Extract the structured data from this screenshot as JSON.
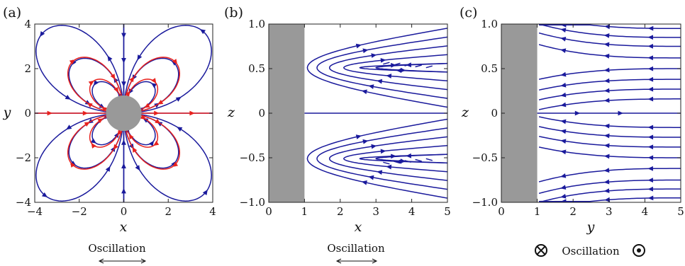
{
  "chart_data": [
    {
      "type": "streamplot",
      "panel_label": "(a)",
      "xlabel": "x",
      "ylabel": "y",
      "xlim": [
        -5,
        5
      ],
      "ylim": [
        -5,
        5
      ],
      "xticks": [
        "−4",
        "−2",
        "0",
        "2",
        "4"
      ],
      "yticks": [
        "4",
        "2",
        "0",
        "−2",
        "−4"
      ],
      "obstacle": {
        "shape": "circle",
        "center": [
          0,
          0
        ],
        "radius": 1,
        "color": "#999999"
      },
      "series": [
        {
          "color": "#1a1a9c",
          "loop_radii": [
            1.15,
            2.0,
            3.2
          ]
        },
        {
          "color": "#e8221e",
          "loop_radii": [
            1.55,
            2.55
          ]
        }
      ],
      "caption": "Oscillation",
      "caption_arrow": "horizontal-double"
    },
    {
      "type": "streamplot",
      "panel_label": "(b)",
      "xlabel": "x",
      "ylabel": "z",
      "xlim": [
        0,
        5
      ],
      "ylim": [
        -1,
        1
      ],
      "xticks": [
        "0",
        "1",
        "2",
        "3",
        "4",
        "5"
      ],
      "yticks": [
        "1.0",
        "0.5",
        "0",
        "−0.5",
        "−1.0"
      ],
      "wall": {
        "x_range": [
          0,
          1
        ],
        "color": "#999999"
      },
      "series": [
        {
          "color": "#1a1a9c"
        }
      ],
      "caption": "Oscillation",
      "caption_arrow": "horizontal-double"
    },
    {
      "type": "streamplot",
      "panel_label": "(c)",
      "xlabel": "y",
      "ylabel": "z",
      "xlim": [
        0,
        5
      ],
      "ylim": [
        -1,
        1
      ],
      "xticks": [
        "0",
        "1",
        "2",
        "3",
        "4",
        "5"
      ],
      "yticks": [
        "1.0",
        "0.5",
        "0",
        "−0.5",
        "−1.0"
      ],
      "wall": {
        "x_range": [
          0,
          1
        ],
        "color": "#999999"
      },
      "series": [
        {
          "color": "#1a1a9c"
        }
      ],
      "caption": "Oscillation",
      "caption_symbols": [
        "into-page",
        "out-of-page"
      ]
    }
  ]
}
